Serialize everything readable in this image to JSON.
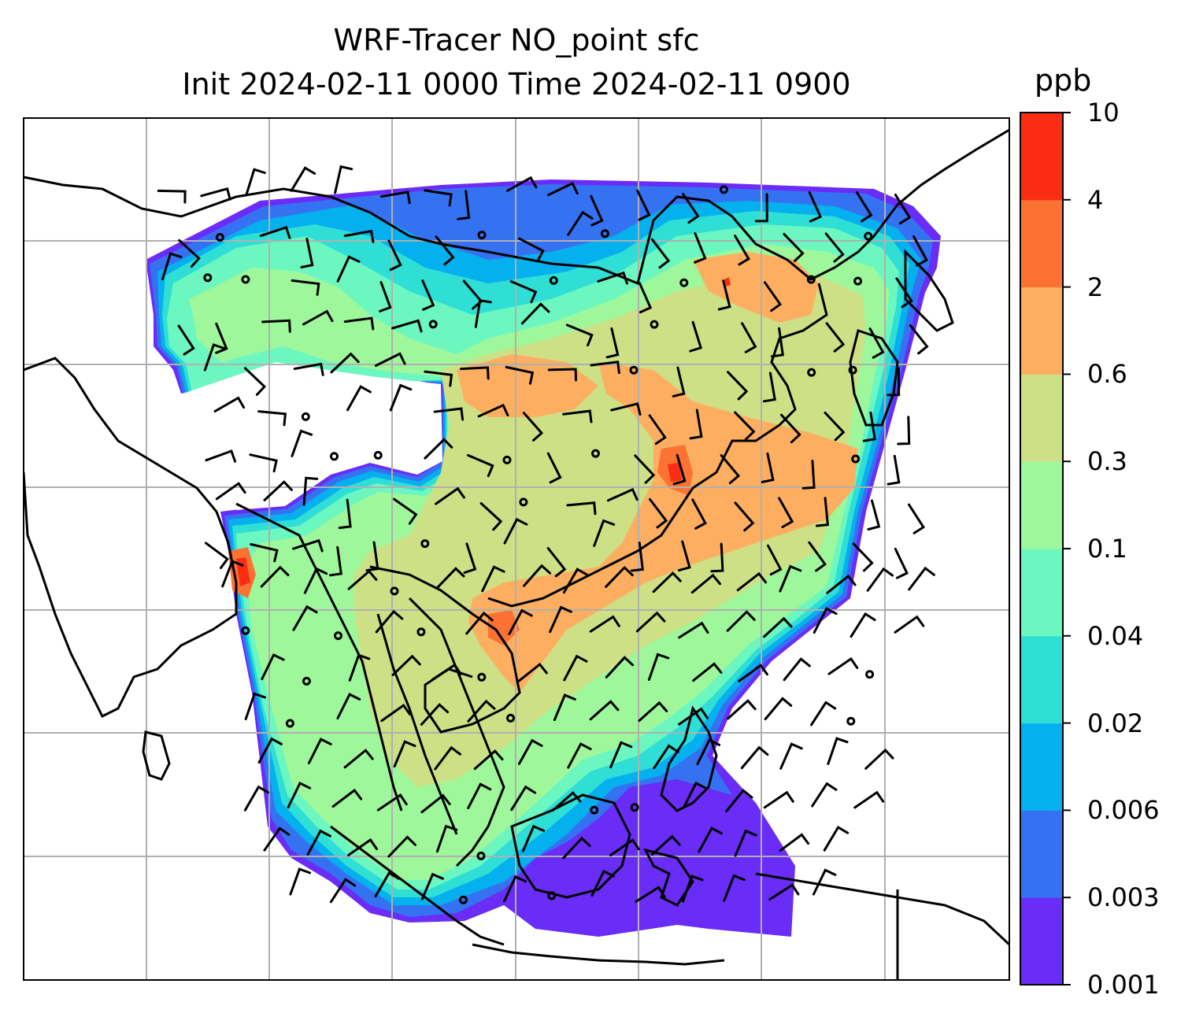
{
  "title": {
    "line1": "WRF-Tracer NO_point sfc",
    "line2": "Init 2024-02-11 0000 Time 2024-02-11 0900"
  },
  "colorbar": {
    "unit": "ppb",
    "levels": [
      "0.001",
      "0.003",
      "0.006",
      "0.02",
      "0.04",
      "0.1",
      "0.3",
      "0.6",
      "2",
      "4",
      "10"
    ],
    "colors": [
      "#6a2cf7",
      "#3572f2",
      "#05b0ee",
      "#2fdfd6",
      "#6cf7c0",
      "#9ef79a",
      "#cde086",
      "#fdae61",
      "#fb7232",
      "#fa2c14"
    ]
  },
  "map": {
    "gridlines": true,
    "field": "NO_point tracer concentration",
    "overlay": "wind barbs"
  }
}
